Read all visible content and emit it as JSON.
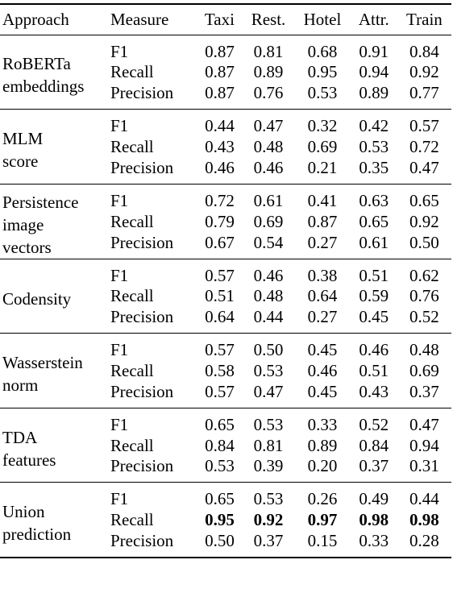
{
  "header": {
    "approach": "Approach",
    "measure": "Measure",
    "columns": [
      "Taxi",
      "Rest.",
      "Hotel",
      "Attr.",
      "Train"
    ]
  },
  "groups": [
    {
      "lines": [
        "RoBERTa",
        "embeddings"
      ],
      "rows": [
        {
          "measure": "F1",
          "values": [
            "0.87",
            "0.81",
            "0.68",
            "0.91",
            "0.84"
          ]
        },
        {
          "measure": "Recall",
          "values": [
            "0.87",
            "0.89",
            "0.95",
            "0.94",
            "0.92"
          ]
        },
        {
          "measure": "Precision",
          "values": [
            "0.87",
            "0.76",
            "0.53",
            "0.89",
            "0.77"
          ]
        }
      ]
    },
    {
      "lines": [
        "MLM",
        "score"
      ],
      "rows": [
        {
          "measure": "F1",
          "values": [
            "0.44",
            "0.47",
            "0.32",
            "0.42",
            "0.57"
          ]
        },
        {
          "measure": "Recall",
          "values": [
            "0.43",
            "0.48",
            "0.69",
            "0.53",
            "0.72"
          ]
        },
        {
          "measure": "Precision",
          "values": [
            "0.46",
            "0.46",
            "0.21",
            "0.35",
            "0.47"
          ]
        }
      ]
    },
    {
      "lines": [
        "Persistence",
        "image",
        "vectors"
      ],
      "rows": [
        {
          "measure": "F1",
          "values": [
            "0.72",
            "0.61",
            "0.41",
            "0.63",
            "0.65"
          ]
        },
        {
          "measure": "Recall",
          "values": [
            "0.79",
            "0.69",
            "0.87",
            "0.65",
            "0.92"
          ]
        },
        {
          "measure": "Precision",
          "values": [
            "0.67",
            "0.54",
            "0.27",
            "0.61",
            "0.50"
          ]
        }
      ]
    },
    {
      "lines": [
        "Codensity"
      ],
      "rows": [
        {
          "measure": "F1",
          "values": [
            "0.57",
            "0.46",
            "0.38",
            "0.51",
            "0.62"
          ]
        },
        {
          "measure": "Recall",
          "values": [
            "0.51",
            "0.48",
            "0.64",
            "0.59",
            "0.76"
          ]
        },
        {
          "measure": "Precision",
          "values": [
            "0.64",
            "0.44",
            "0.27",
            "0.45",
            "0.52"
          ]
        }
      ]
    },
    {
      "lines": [
        "Wasserstein",
        "norm"
      ],
      "rows": [
        {
          "measure": "F1",
          "values": [
            "0.57",
            "0.50",
            "0.45",
            "0.46",
            "0.48"
          ]
        },
        {
          "measure": "Recall",
          "values": [
            "0.58",
            "0.53",
            "0.46",
            "0.51",
            "0.69"
          ]
        },
        {
          "measure": "Precision",
          "values": [
            "0.57",
            "0.47",
            "0.45",
            "0.43",
            "0.37"
          ]
        }
      ]
    },
    {
      "lines": [
        "TDA",
        "features"
      ],
      "rows": [
        {
          "measure": "F1",
          "values": [
            "0.65",
            "0.53",
            "0.33",
            "0.52",
            "0.47"
          ]
        },
        {
          "measure": "Recall",
          "values": [
            "0.84",
            "0.81",
            "0.89",
            "0.84",
            "0.94"
          ]
        },
        {
          "measure": "Precision",
          "values": [
            "0.53",
            "0.39",
            "0.20",
            "0.37",
            "0.31"
          ]
        }
      ]
    },
    {
      "lines": [
        "Union",
        "prediction"
      ],
      "rows": [
        {
          "measure": "F1",
          "values": [
            "0.65",
            "0.53",
            "0.26",
            "0.49",
            "0.44"
          ]
        },
        {
          "measure": "Recall",
          "values": [
            "0.95",
            "0.92",
            "0.97",
            "0.98",
            "0.98"
          ],
          "bold": true
        },
        {
          "measure": "Precision",
          "values": [
            "0.50",
            "0.37",
            "0.15",
            "0.33",
            "0.28"
          ]
        }
      ]
    }
  ]
}
